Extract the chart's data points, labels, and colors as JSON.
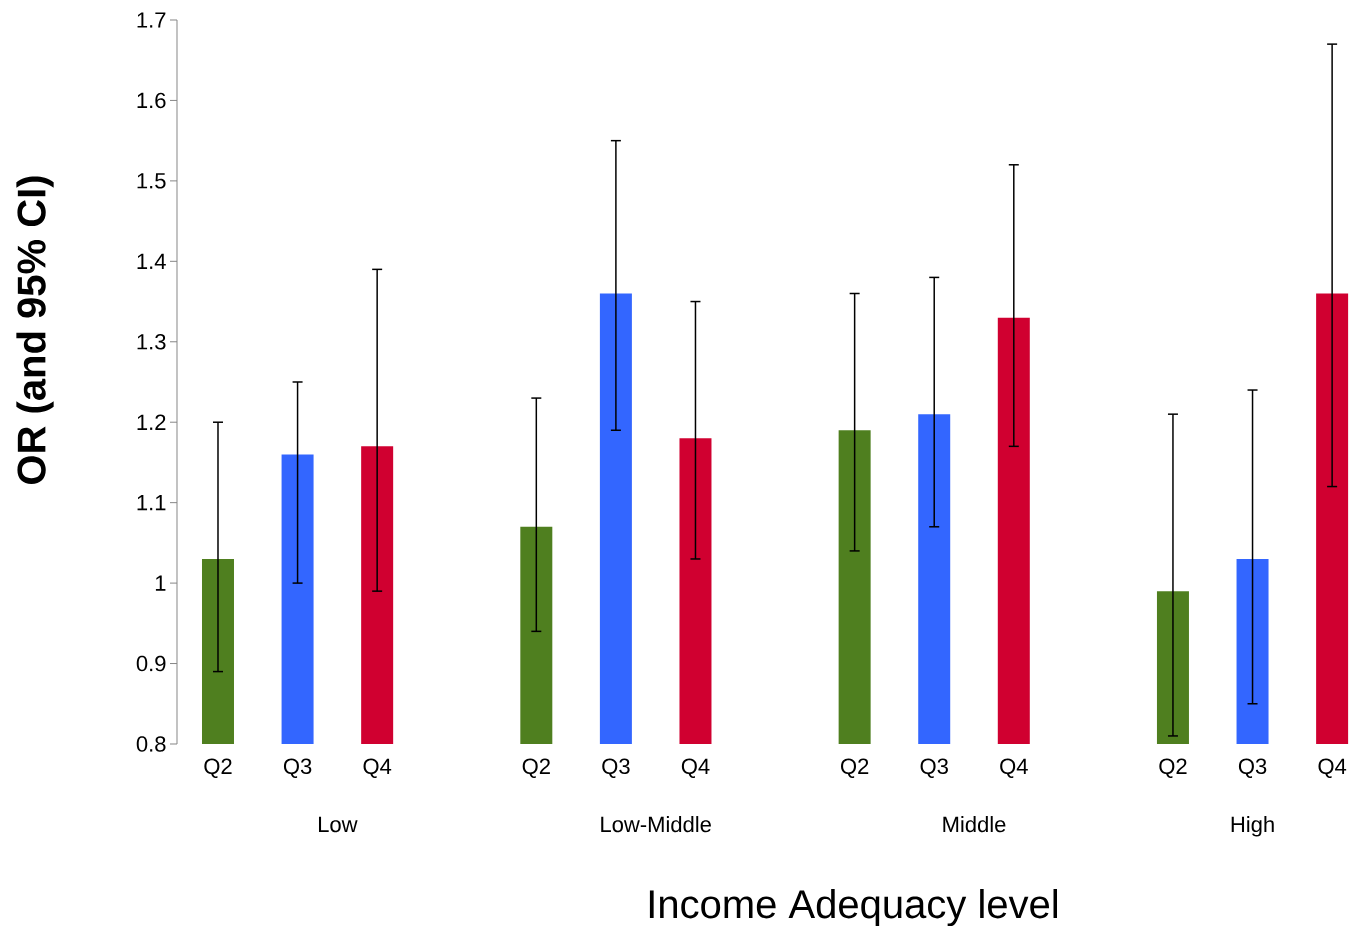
{
  "chart_data": {
    "type": "bar",
    "xlabel": "Income Adequacy level",
    "ylabel": "OR (and 95% CI)",
    "categories": [
      "Q2",
      "Q3",
      "Q4",
      null,
      "Q2",
      "Q3",
      "Q4",
      null,
      "Q2",
      "Q3",
      "Q4",
      null,
      "Q2",
      "Q3",
      "Q4"
    ],
    "values": [
      1.03,
      1.16,
      1.17,
      null,
      1.07,
      1.36,
      1.18,
      null,
      1.19,
      1.21,
      1.33,
      null,
      0.99,
      1.03,
      1.36
    ],
    "colors": [
      "#4f7f1f",
      "#3366ff",
      "#d00030",
      null,
      "#4f7f1f",
      "#3366ff",
      "#d00030",
      null,
      "#4f7f1f",
      "#3366ff",
      "#d00030",
      null,
      "#4f7f1f",
      "#3366ff",
      "#d00030"
    ],
    "errors": [
      [
        0.89,
        1.2
      ],
      [
        1.0,
        1.25
      ],
      [
        0.99,
        1.39
      ],
      null,
      [
        0.94,
        1.23
      ],
      [
        1.19,
        1.55
      ],
      [
        1.03,
        1.35
      ],
      null,
      [
        1.04,
        1.36
      ],
      [
        1.07,
        1.38
      ],
      [
        1.17,
        1.52
      ],
      null,
      [
        0.81,
        1.21
      ],
      [
        0.85,
        1.24
      ],
      [
        1.12,
        1.67
      ]
    ],
    "ylim": [
      0.8,
      1.7
    ],
    "yticks": [
      0.8,
      0.9,
      1,
      1.1,
      1.2,
      1.3,
      1.4,
      1.5,
      1.6,
      1.7
    ],
    "annotations": [
      "Low",
      "Low-Middle",
      "Middle",
      "High"
    ]
  }
}
